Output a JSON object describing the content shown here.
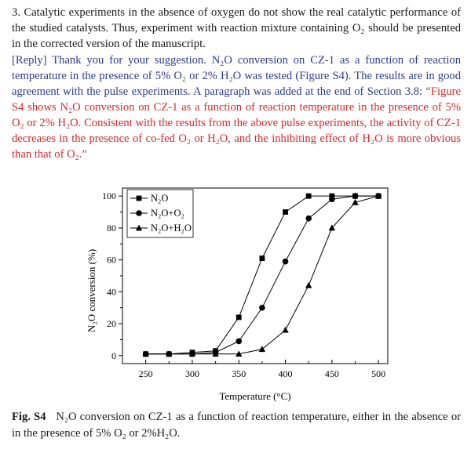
{
  "question": {
    "number": "3.",
    "text": "Catalytic experiments in the absence of oxygen do not show the real catalytic performance of the studied catalysts. Thus, experiment with reaction mixture containing O₂ should be presented in the corrected version of the manuscript."
  },
  "reply": {
    "tag": "[Reply]",
    "text": "Thank you for your suggestion. N₂O conversion on CZ-1 as a function of reaction temperature in the presence of 5% O₂ or 2% H₂O was tested (Figure S4). The results are in good agreement with the pulse experiments. A paragraph was added at the end of Section 3.8:",
    "quote": "“Figure S4 shows N₂O conversion on CZ-1 as a function of reaction temperature in the presence of 5% O₂ or 2% H₂O. Consistent with the results from the above pulse experiments, the activity of CZ-1 decreases in the presence of co-fed O₂ or H₂O, and the inhibiting effect of H₂O is more obvious than that of O₂.”"
  },
  "colors": {
    "question": "#1a1a1a",
    "reply": "#2e3b8f",
    "quote": "#d12a2a"
  },
  "chart_data": {
    "type": "line",
    "title": "",
    "xlabel": "Temperature (°C)",
    "ylabel": "N₂O conversion (%)",
    "xlim": [
      225,
      510
    ],
    "ylim": [
      -5,
      105
    ],
    "xticks": [
      250,
      300,
      350,
      400,
      450,
      500
    ],
    "yticks": [
      0,
      20,
      40,
      60,
      80,
      100
    ],
    "grid": false,
    "legend_position": "top-left",
    "x": [
      250,
      275,
      300,
      325,
      350,
      375,
      400,
      425,
      450,
      475,
      500
    ],
    "series": [
      {
        "name": "N₂O",
        "marker": "square",
        "values": [
          1,
          1,
          2,
          3,
          24,
          61,
          90,
          100,
          100,
          100,
          100
        ]
      },
      {
        "name": "N₂O+O₂",
        "marker": "circle",
        "values": [
          1,
          1,
          1,
          2,
          9,
          30,
          59,
          86,
          98,
          100,
          100
        ]
      },
      {
        "name": "N₂O+H₂O",
        "marker": "triangle",
        "values": [
          1,
          1,
          1,
          1,
          1,
          4,
          16,
          44,
          80,
          96,
          100
        ]
      }
    ]
  },
  "caption": {
    "label": "Fig. S4",
    "text": "N₂O conversion on CZ-1 as a function of reaction temperature, either in the absence or in the presence of 5% O₂ or 2%H₂O."
  }
}
